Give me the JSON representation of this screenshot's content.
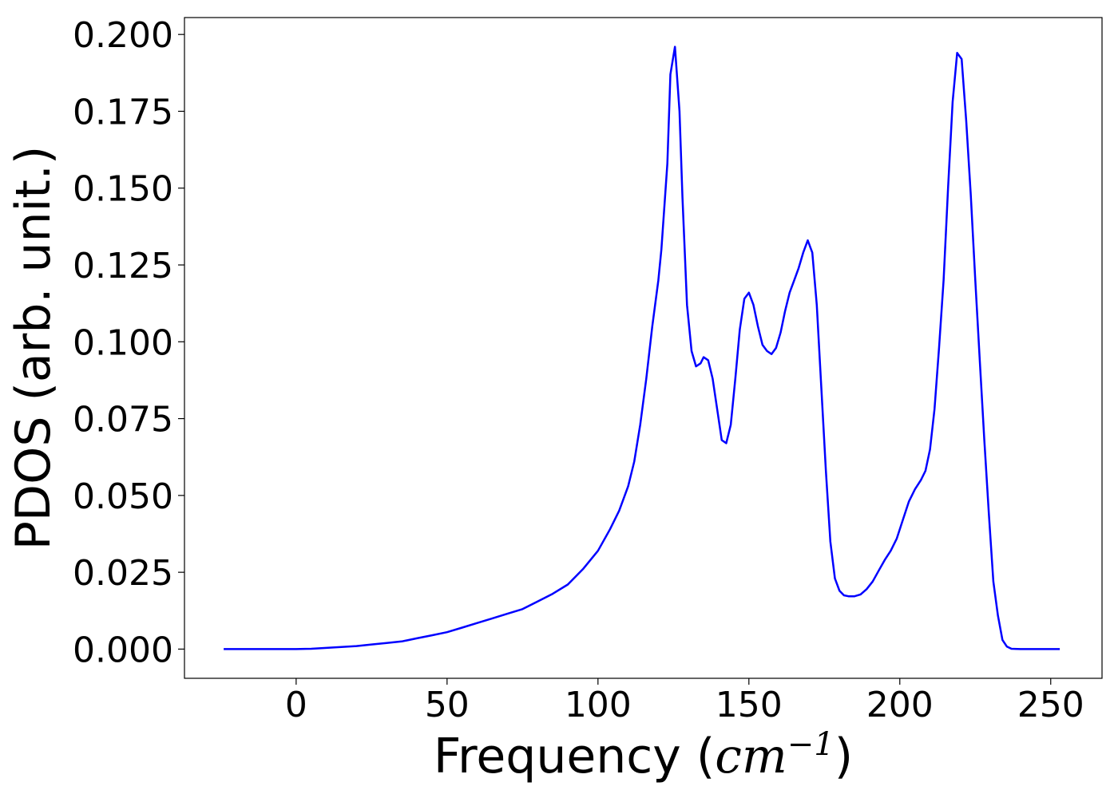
{
  "chart_data": {
    "type": "line",
    "xlabel_prefix": "Frequency (",
    "xlabel_unit": "cm",
    "xlabel_exp": "−1",
    "xlabel_suffix": ")",
    "ylabel": "PDOS (arb. unit.)",
    "xlim": [
      -37,
      267
    ],
    "ylim": [
      -0.0095,
      0.2055
    ],
    "grid": false,
    "xticks": [
      0,
      50,
      100,
      150,
      200,
      250
    ],
    "xtick_labels": [
      "0",
      "50",
      "100",
      "150",
      "200",
      "250"
    ],
    "yticks": [
      0.0,
      0.025,
      0.05,
      0.075,
      0.1,
      0.125,
      0.15,
      0.175,
      0.2
    ],
    "ytick_labels": [
      "0.000",
      "0.025",
      "0.050",
      "0.075",
      "0.100",
      "0.125",
      "0.150",
      "0.175",
      "0.200"
    ],
    "series": [
      {
        "color": "#0000ff",
        "x": [
          -24,
          -10,
          0,
          5,
          10,
          15,
          20,
          25,
          30,
          35,
          40,
          45,
          50,
          55,
          60,
          65,
          70,
          75,
          80,
          85,
          90,
          95,
          100,
          104,
          107,
          110,
          112,
          114,
          116,
          118,
          120,
          121,
          123,
          124,
          125.5,
          127,
          128,
          129.5,
          131,
          132.5,
          134,
          135,
          136.5,
          138,
          139.5,
          141,
          142.5,
          144,
          145.5,
          147,
          148.5,
          150,
          151.5,
          153,
          154.5,
          156,
          157.5,
          159,
          160.5,
          162,
          163.5,
          165,
          166.5,
          168,
          169.5,
          171,
          172.5,
          174,
          175.5,
          177,
          178.5,
          180,
          181.5,
          183,
          185,
          187,
          189,
          191,
          193,
          195,
          197,
          199,
          201,
          203,
          205,
          207,
          208.5,
          210,
          211.5,
          213,
          214.5,
          216,
          217.5,
          219,
          220.5,
          222,
          223.5,
          225,
          226.5,
          228,
          229.5,
          231,
          232.5,
          234,
          235.5,
          237,
          240,
          245,
          253
        ],
        "y": [
          0,
          0,
          0,
          0.0001,
          0.0004,
          0.0007,
          0.001,
          0.0015,
          0.002,
          0.0025,
          0.0035,
          0.0045,
          0.0055,
          0.007,
          0.0085,
          0.01,
          0.0115,
          0.013,
          0.0155,
          0.018,
          0.021,
          0.026,
          0.032,
          0.039,
          0.045,
          0.053,
          0.061,
          0.073,
          0.088,
          0.105,
          0.12,
          0.13,
          0.158,
          0.187,
          0.196,
          0.175,
          0.147,
          0.112,
          0.097,
          0.092,
          0.093,
          0.095,
          0.094,
          0.088,
          0.078,
          0.068,
          0.067,
          0.073,
          0.088,
          0.104,
          0.114,
          0.116,
          0.112,
          0.105,
          0.099,
          0.097,
          0.096,
          0.098,
          0.103,
          0.11,
          0.116,
          0.12,
          0.124,
          0.129,
          0.133,
          0.129,
          0.112,
          0.085,
          0.058,
          0.035,
          0.023,
          0.019,
          0.0175,
          0.0172,
          0.0172,
          0.0178,
          0.0195,
          0.022,
          0.0255,
          0.029,
          0.032,
          0.036,
          0.042,
          0.048,
          0.052,
          0.055,
          0.058,
          0.065,
          0.078,
          0.098,
          0.12,
          0.15,
          0.178,
          0.194,
          0.192,
          0.172,
          0.148,
          0.12,
          0.094,
          0.068,
          0.044,
          0.022,
          0.011,
          0.003,
          0.0008,
          0.0001,
          0,
          0,
          0
        ]
      }
    ]
  }
}
